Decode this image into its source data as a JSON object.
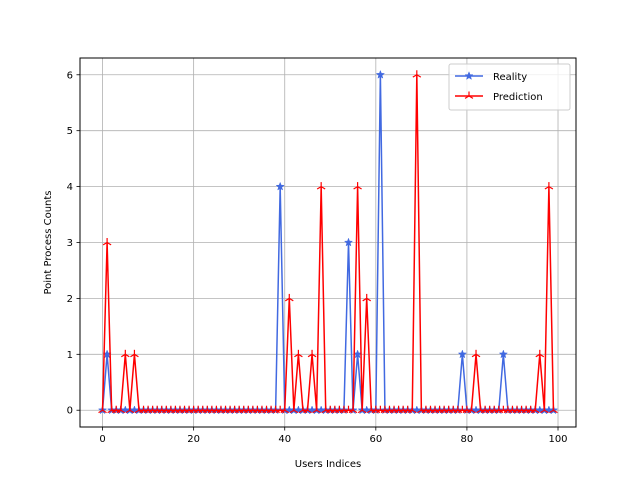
{
  "chart_data": {
    "type": "line",
    "title": "",
    "xlabel": "Users Indices",
    "ylabel": "Point Process Counts",
    "xlim": [
      -4.95,
      103.95
    ],
    "ylim": [
      -0.3,
      6.3
    ],
    "xticks": [
      0,
      20,
      40,
      60,
      80,
      100
    ],
    "yticks": [
      0,
      1,
      2,
      3,
      4,
      5,
      6
    ],
    "grid": true,
    "legend_position": "top-right",
    "series": [
      {
        "name": "Reality",
        "color": "#4169e1",
        "marker": "star",
        "x": [
          0,
          1,
          2,
          3,
          4,
          5,
          6,
          7,
          8,
          9,
          10,
          11,
          12,
          13,
          14,
          15,
          16,
          17,
          18,
          19,
          20,
          21,
          22,
          23,
          24,
          25,
          26,
          27,
          28,
          29,
          30,
          31,
          32,
          33,
          34,
          35,
          36,
          37,
          38,
          39,
          40,
          41,
          42,
          43,
          44,
          45,
          46,
          47,
          48,
          49,
          50,
          51,
          52,
          53,
          54,
          55,
          56,
          57,
          58,
          59,
          60,
          61,
          62,
          63,
          64,
          65,
          66,
          67,
          68,
          69,
          70,
          71,
          72,
          73,
          74,
          75,
          76,
          77,
          78,
          79,
          80,
          81,
          82,
          83,
          84,
          85,
          86,
          87,
          88,
          89,
          90,
          91,
          92,
          93,
          94,
          95,
          96,
          97,
          98,
          99
        ],
        "values": [
          0,
          1,
          0,
          0,
          0,
          0,
          0,
          0,
          0,
          0,
          0,
          0,
          0,
          0,
          0,
          0,
          0,
          0,
          0,
          0,
          0,
          0,
          0,
          0,
          0,
          0,
          0,
          0,
          0,
          0,
          0,
          0,
          0,
          0,
          0,
          0,
          0,
          0,
          0,
          4,
          0,
          0,
          0,
          0,
          0,
          0,
          0,
          0,
          0,
          0,
          0,
          0,
          0,
          0,
          3,
          0,
          1,
          0,
          0,
          0,
          0,
          6,
          0,
          0,
          0,
          0,
          0,
          0,
          0,
          0,
          0,
          0,
          0,
          0,
          0,
          0,
          0,
          0,
          0,
          1,
          0,
          0,
          0,
          0,
          0,
          0,
          0,
          0,
          1,
          0,
          0,
          0,
          0,
          0,
          0,
          0,
          0,
          0,
          0,
          0
        ]
      },
      {
        "name": "Prediction",
        "color": "#ff0000",
        "marker": "tri",
        "x": [
          0,
          1,
          2,
          3,
          4,
          5,
          6,
          7,
          8,
          9,
          10,
          11,
          12,
          13,
          14,
          15,
          16,
          17,
          18,
          19,
          20,
          21,
          22,
          23,
          24,
          25,
          26,
          27,
          28,
          29,
          30,
          31,
          32,
          33,
          34,
          35,
          36,
          37,
          38,
          39,
          40,
          41,
          42,
          43,
          44,
          45,
          46,
          47,
          48,
          49,
          50,
          51,
          52,
          53,
          54,
          55,
          56,
          57,
          58,
          59,
          60,
          61,
          62,
          63,
          64,
          65,
          66,
          67,
          68,
          69,
          70,
          71,
          72,
          73,
          74,
          75,
          76,
          77,
          78,
          79,
          80,
          81,
          82,
          83,
          84,
          85,
          86,
          87,
          88,
          89,
          90,
          91,
          92,
          93,
          94,
          95,
          96,
          97,
          98,
          99
        ],
        "values": [
          0,
          3,
          0,
          0,
          0,
          1,
          0,
          1,
          0,
          0,
          0,
          0,
          0,
          0,
          0,
          0,
          0,
          0,
          0,
          0,
          0,
          0,
          0,
          0,
          0,
          0,
          0,
          0,
          0,
          0,
          0,
          0,
          0,
          0,
          0,
          0,
          0,
          0,
          0,
          0,
          0,
          2,
          0,
          1,
          0,
          0,
          1,
          0,
          4,
          0,
          0,
          0,
          0,
          0,
          0,
          0,
          4,
          0,
          2,
          0,
          0,
          0,
          0,
          0,
          0,
          0,
          0,
          0,
          0,
          6,
          0,
          0,
          0,
          0,
          0,
          0,
          0,
          0,
          0,
          0,
          0,
          0,
          1,
          0,
          0,
          0,
          0,
          0,
          0,
          0,
          0,
          0,
          0,
          0,
          0,
          0,
          1,
          0,
          4,
          0
        ]
      }
    ]
  }
}
